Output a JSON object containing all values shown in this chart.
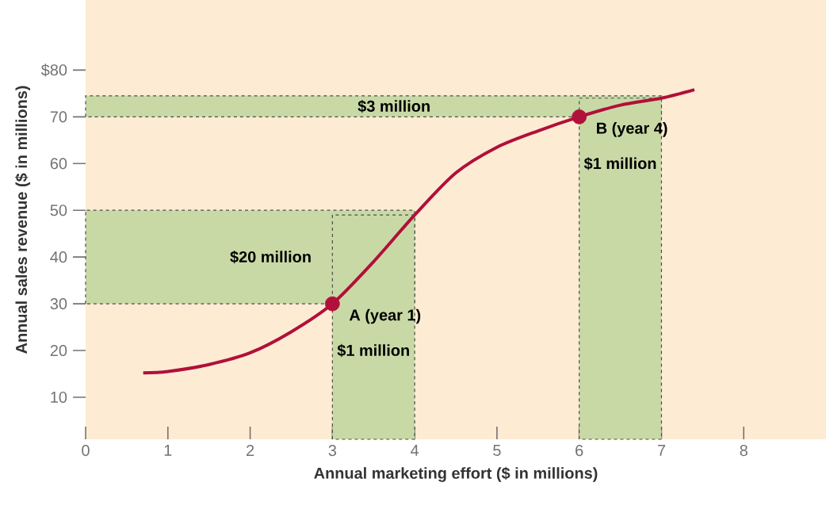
{
  "chart_data": {
    "type": "line",
    "xlabel": "Annual marketing effort ($ in millions)",
    "ylabel": "Annual sales revenue ($ in millions)",
    "xlim": [
      0,
      9
    ],
    "ylim": [
      1,
      95
    ],
    "xticks": [
      0,
      1,
      2,
      3,
      4,
      5,
      6,
      7,
      8
    ],
    "yticks": [
      10,
      20,
      30,
      40,
      50,
      60,
      70,
      {
        "value": 80,
        "label": "$80"
      }
    ],
    "series": [
      {
        "color": "#b0103a",
        "marker": "none",
        "x": [
          0.7,
          1,
          1.5,
          2,
          2.5,
          3,
          3.5,
          4,
          4.5,
          5,
          5.5,
          6,
          6.5,
          7,
          7.4
        ],
        "values": [
          15.2,
          15.5,
          17,
          19.5,
          24,
          30,
          39,
          49,
          58,
          63.5,
          67,
          70,
          72.5,
          74,
          75.8
        ]
      },
      {
        "type": "scatter",
        "color": "#b0103a",
        "marker": "circle",
        "x": [
          3,
          6
        ],
        "values": [
          30,
          70
        ]
      }
    ],
    "bands": [
      {
        "axis": "y",
        "from": 30,
        "to": 50,
        "label": "$20 million",
        "color": "#c9d9a6"
      },
      {
        "axis": "y",
        "from": 70,
        "to": 74.5,
        "label": "$3 million",
        "color": "#c9d9a6"
      },
      {
        "axis": "x",
        "from": 3,
        "to": 4,
        "label": "$1 million",
        "color": "#c9d9a6"
      },
      {
        "axis": "x",
        "from": 6,
        "to": 7,
        "label": "$1 million",
        "color": "#c9d9a6"
      }
    ],
    "annotations": [
      {
        "text": "A (year 1)",
        "x": 3,
        "y": 30
      },
      {
        "text": "B (year 4)",
        "x": 6,
        "y": 70
      }
    ]
  }
}
